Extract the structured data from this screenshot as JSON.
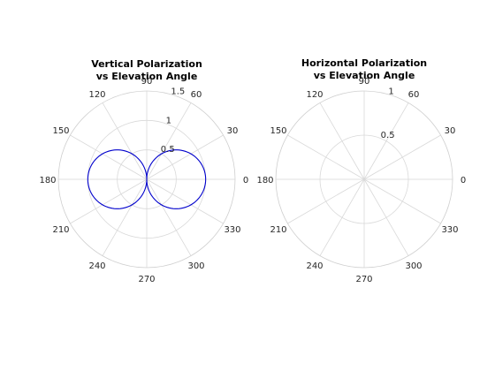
{
  "chart_data": [
    {
      "type": "polar-line",
      "title": [
        "Vertical Polarization",
        "vs Elevation Angle"
      ],
      "theta_ticks_deg": [
        0,
        30,
        60,
        90,
        120,
        150,
        180,
        210,
        240,
        270,
        300,
        330
      ],
      "r_ticks": [
        0.5,
        1,
        1.5
      ],
      "r_tick_labels": [
        "0.5",
        "1",
        "1.5"
      ],
      "rlim": [
        0,
        1.5
      ],
      "r_label_angle_deg": 80,
      "grid": true,
      "series": [
        {
          "color": "#0000cc",
          "function": "abs(cos(theta))",
          "theta_range_deg": [
            0,
            360
          ]
        }
      ]
    },
    {
      "type": "polar-line",
      "title": [
        "Horizontal Polarization",
        "vs Elevation Angle"
      ],
      "theta_ticks_deg": [
        0,
        30,
        60,
        90,
        120,
        150,
        180,
        210,
        240,
        270,
        300,
        330
      ],
      "r_ticks": [
        0.5,
        1
      ],
      "r_tick_labels": [
        "0.5",
        "1"
      ],
      "rlim": [
        0,
        1
      ],
      "r_label_angle_deg": 80,
      "grid": true,
      "series": []
    }
  ]
}
